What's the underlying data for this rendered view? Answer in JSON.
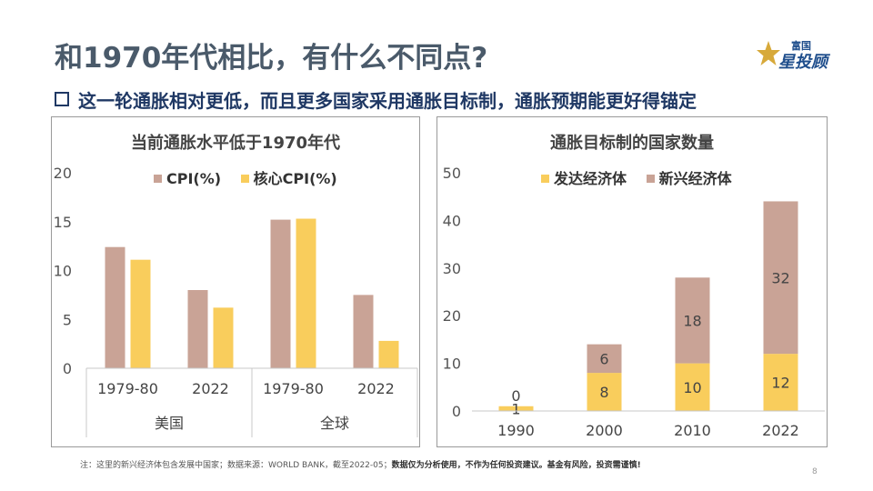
{
  "slide": {
    "title": "和1970年代相比，有什么不同点?",
    "subtitle": "这一轮通胀相对更低，而且更多国家采用通胀目标制，通胀预期能更好得锚定",
    "logo_small": "富国",
    "logo_big": "星投顾",
    "footnote_regular": "注：这里的新兴经济体包含发展中国家；数据来源：WORLD BANK，截至2022-05；",
    "footnote_bold": "数据仅为分析使用，不作为任何投资建议。基金有风险，投资需谨慎!",
    "page_number": "8"
  },
  "chart_data": [
    {
      "type": "bar",
      "title": "当前通胀水平低于1970年代",
      "categories": [
        "1979-80",
        "2022",
        "1979-80",
        "2022"
      ],
      "groups": [
        "美国",
        "全球"
      ],
      "ylim": [
        0,
        20
      ],
      "yticks": [
        0,
        5,
        10,
        15,
        20
      ],
      "legend_position": "top",
      "grid": false,
      "series": [
        {
          "name": "CPI(%)",
          "color": "#c9a396",
          "values": [
            12.4,
            8.0,
            15.2,
            7.5
          ]
        },
        {
          "name": "核心CPI(%)",
          "color": "#f9cd5c",
          "values": [
            11.1,
            6.2,
            15.3,
            2.8
          ]
        }
      ]
    },
    {
      "type": "bar",
      "stacked": true,
      "title": "通胀目标制的国家数量",
      "categories": [
        "1990",
        "2000",
        "2010",
        "2022"
      ],
      "ylim": [
        0,
        50
      ],
      "yticks": [
        0,
        10,
        20,
        30,
        40,
        50
      ],
      "legend_position": "top",
      "grid": false,
      "series": [
        {
          "name": "发达经济体",
          "color": "#f9cd5c",
          "values": [
            1,
            8,
            10,
            12
          ]
        },
        {
          "name": "新兴经济体",
          "color": "#c9a396",
          "values": [
            0,
            6,
            18,
            32
          ]
        }
      ]
    }
  ]
}
